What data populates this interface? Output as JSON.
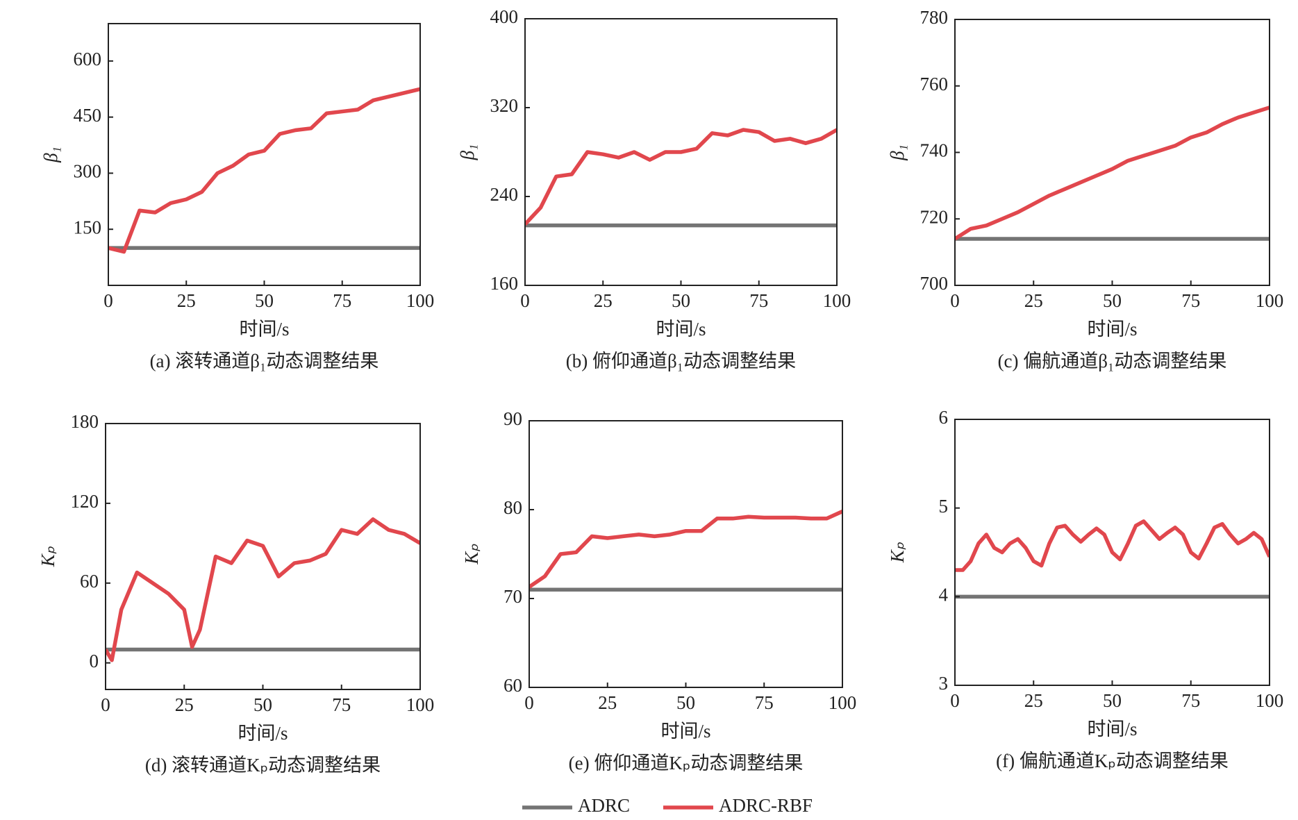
{
  "chart_data": [
    {
      "type": "line",
      "title": "(a) 滚转通道β₁动态调整结果",
      "xlabel": "时间/s",
      "ylabel": "β₁",
      "x": [
        0,
        5,
        10,
        15,
        20,
        25,
        30,
        35,
        40,
        45,
        50,
        55,
        60,
        65,
        70,
        75,
        80,
        85,
        90,
        95,
        100
      ],
      "series": [
        {
          "name": "ADRC",
          "color": "#747474",
          "values": [
            100,
            100,
            100,
            100,
            100,
            100,
            100,
            100,
            100,
            100,
            100,
            100,
            100,
            100,
            100,
            100,
            100,
            100,
            100,
            100,
            100
          ]
        },
        {
          "name": "ADRC-RBF",
          "color": "#e1474d",
          "values": [
            100,
            90,
            200,
            195,
            220,
            230,
            250,
            300,
            320,
            350,
            360,
            405,
            415,
            420,
            460,
            465,
            470,
            495,
            505,
            515,
            525
          ]
        }
      ],
      "xlim": [
        0,
        100
      ],
      "xticks": [
        0,
        25,
        50,
        75,
        100
      ],
      "ylim": [
        0,
        700
      ],
      "yticks": [
        150,
        300,
        450,
        600
      ]
    },
    {
      "type": "line",
      "title": "(b) 俯仰通道β₁动态调整结果",
      "xlabel": "时间/s",
      "ylabel": "β₁",
      "x": [
        0,
        5,
        10,
        15,
        20,
        25,
        30,
        35,
        40,
        45,
        50,
        55,
        60,
        65,
        70,
        75,
        80,
        85,
        90,
        95,
        100
      ],
      "series": [
        {
          "name": "ADRC",
          "color": "#747474",
          "values": [
            214,
            214,
            214,
            214,
            214,
            214,
            214,
            214,
            214,
            214,
            214,
            214,
            214,
            214,
            214,
            214,
            214,
            214,
            214,
            214,
            214
          ]
        },
        {
          "name": "ADRC-RBF",
          "color": "#e1474d",
          "values": [
            215,
            230,
            258,
            260,
            280,
            278,
            275,
            280,
            273,
            280,
            280,
            283,
            297,
            295,
            300,
            298,
            290,
            292,
            288,
            292,
            300
          ]
        }
      ],
      "xlim": [
        0,
        100
      ],
      "xticks": [
        0,
        25,
        50,
        75,
        100
      ],
      "ylim": [
        160,
        400
      ],
      "yticks": [
        160,
        240,
        320,
        400
      ]
    },
    {
      "type": "line",
      "title": "(c) 偏航通道β₁动态调整结果",
      "xlabel": "时间/s",
      "ylabel": "β₁",
      "x": [
        0,
        5,
        10,
        15,
        20,
        25,
        30,
        35,
        40,
        45,
        50,
        55,
        60,
        65,
        70,
        75,
        80,
        85,
        90,
        95,
        100
      ],
      "series": [
        {
          "name": "ADRC",
          "color": "#747474",
          "values": [
            714,
            714,
            714,
            714,
            714,
            714,
            714,
            714,
            714,
            714,
            714,
            714,
            714,
            714,
            714,
            714,
            714,
            714,
            714,
            714,
            714
          ]
        },
        {
          "name": "ADRC-RBF",
          "color": "#e1474d",
          "values": [
            714,
            717,
            718,
            720,
            722,
            724.5,
            727,
            729,
            731,
            733,
            735,
            737.5,
            739,
            740.5,
            742,
            744.5,
            746,
            748.5,
            750.5,
            752,
            753.5
          ]
        }
      ],
      "xlim": [
        0,
        100
      ],
      "xticks": [
        0,
        25,
        50,
        75,
        100
      ],
      "ylim": [
        700,
        780
      ],
      "yticks": [
        700,
        720,
        740,
        760,
        780
      ]
    },
    {
      "type": "line",
      "title": "(d) 滚转通道Kₚ动态调整结果",
      "xlabel": "时间/s",
      "ylabel": "Kₚ",
      "x": [
        0,
        2,
        5,
        10,
        15,
        20,
        25,
        27.5,
        30,
        35,
        40,
        45,
        50,
        55,
        60,
        65,
        70,
        75,
        80,
        85,
        90,
        95,
        100
      ],
      "series": [
        {
          "name": "ADRC",
          "color": "#747474",
          "values": [
            10,
            10,
            10,
            10,
            10,
            10,
            10,
            10,
            10,
            10,
            10,
            10,
            10,
            10,
            10,
            10,
            10,
            10,
            10,
            10,
            10,
            10,
            10
          ]
        },
        {
          "name": "ADRC-RBF",
          "color": "#e1474d",
          "values": [
            10,
            2,
            40,
            68,
            60,
            52,
            40,
            12,
            25,
            80,
            75,
            92,
            88,
            65,
            75,
            77,
            82,
            100,
            97,
            108,
            100,
            97,
            90
          ]
        }
      ],
      "xlim": [
        0,
        100
      ],
      "xticks": [
        0,
        25,
        50,
        75,
        100
      ],
      "ylim": [
        -20,
        180
      ],
      "yticks": [
        0,
        60,
        120,
        180
      ]
    },
    {
      "type": "line",
      "title": "(e) 俯仰通道Kₚ动态调整结果",
      "xlabel": "时间/s",
      "ylabel": "Kₚ",
      "x": [
        0,
        5,
        10,
        15,
        20,
        25,
        30,
        35,
        40,
        45,
        50,
        55,
        60,
        65,
        70,
        75,
        80,
        85,
        90,
        95,
        100
      ],
      "series": [
        {
          "name": "ADRC",
          "color": "#747474",
          "values": [
            71,
            71,
            71,
            71,
            71,
            71,
            71,
            71,
            71,
            71,
            71,
            71,
            71,
            71,
            71,
            71,
            71,
            71,
            71,
            71,
            71
          ]
        },
        {
          "name": "ADRC-RBF",
          "color": "#e1474d",
          "values": [
            71.3,
            72.5,
            75,
            75.2,
            77,
            76.8,
            77,
            77.2,
            77,
            77.2,
            77.6,
            77.6,
            79,
            79,
            79.2,
            79.1,
            79.1,
            79.1,
            79,
            79,
            79.8
          ]
        }
      ],
      "xlim": [
        0,
        100
      ],
      "xticks": [
        0,
        25,
        50,
        75,
        100
      ],
      "ylim": [
        60,
        90
      ],
      "yticks": [
        60,
        70,
        80,
        90
      ]
    },
    {
      "type": "line",
      "title": "(f) 偏航通道Kₚ动态调整结果",
      "xlabel": "时间/s",
      "ylabel": "Kₚ",
      "x": [
        0,
        2.5,
        5,
        7.5,
        10,
        12.5,
        15,
        17.5,
        20,
        22.5,
        25,
        27.5,
        30,
        32.5,
        35,
        37.5,
        40,
        42.5,
        45,
        47.5,
        50,
        52.5,
        55,
        57.5,
        60,
        62.5,
        65,
        67.5,
        70,
        72.5,
        75,
        77.5,
        80,
        82.5,
        85,
        87.5,
        90,
        92.5,
        95,
        97.5,
        100
      ],
      "series": [
        {
          "name": "ADRC",
          "color": "#747474",
          "values": [
            4,
            4,
            4,
            4,
            4,
            4,
            4,
            4,
            4,
            4,
            4,
            4,
            4,
            4,
            4,
            4,
            4,
            4,
            4,
            4,
            4,
            4,
            4,
            4,
            4,
            4,
            4,
            4,
            4,
            4,
            4,
            4,
            4,
            4,
            4,
            4,
            4,
            4,
            4,
            4,
            4
          ]
        },
        {
          "name": "ADRC-RBF",
          "color": "#e1474d",
          "values": [
            4.3,
            4.3,
            4.4,
            4.6,
            4.7,
            4.55,
            4.5,
            4.6,
            4.65,
            4.55,
            4.4,
            4.35,
            4.6,
            4.78,
            4.8,
            4.7,
            4.62,
            4.7,
            4.77,
            4.7,
            4.5,
            4.42,
            4.6,
            4.8,
            4.85,
            4.75,
            4.65,
            4.72,
            4.78,
            4.7,
            4.5,
            4.43,
            4.6,
            4.78,
            4.82,
            4.7,
            4.6,
            4.65,
            4.72,
            4.65,
            4.45
          ]
        }
      ],
      "xlim": [
        0,
        100
      ],
      "xticks": [
        0,
        25,
        50,
        75,
        100
      ],
      "ylim": [
        3,
        6
      ],
      "yticks": [
        3,
        4,
        5,
        6
      ]
    }
  ]
}
